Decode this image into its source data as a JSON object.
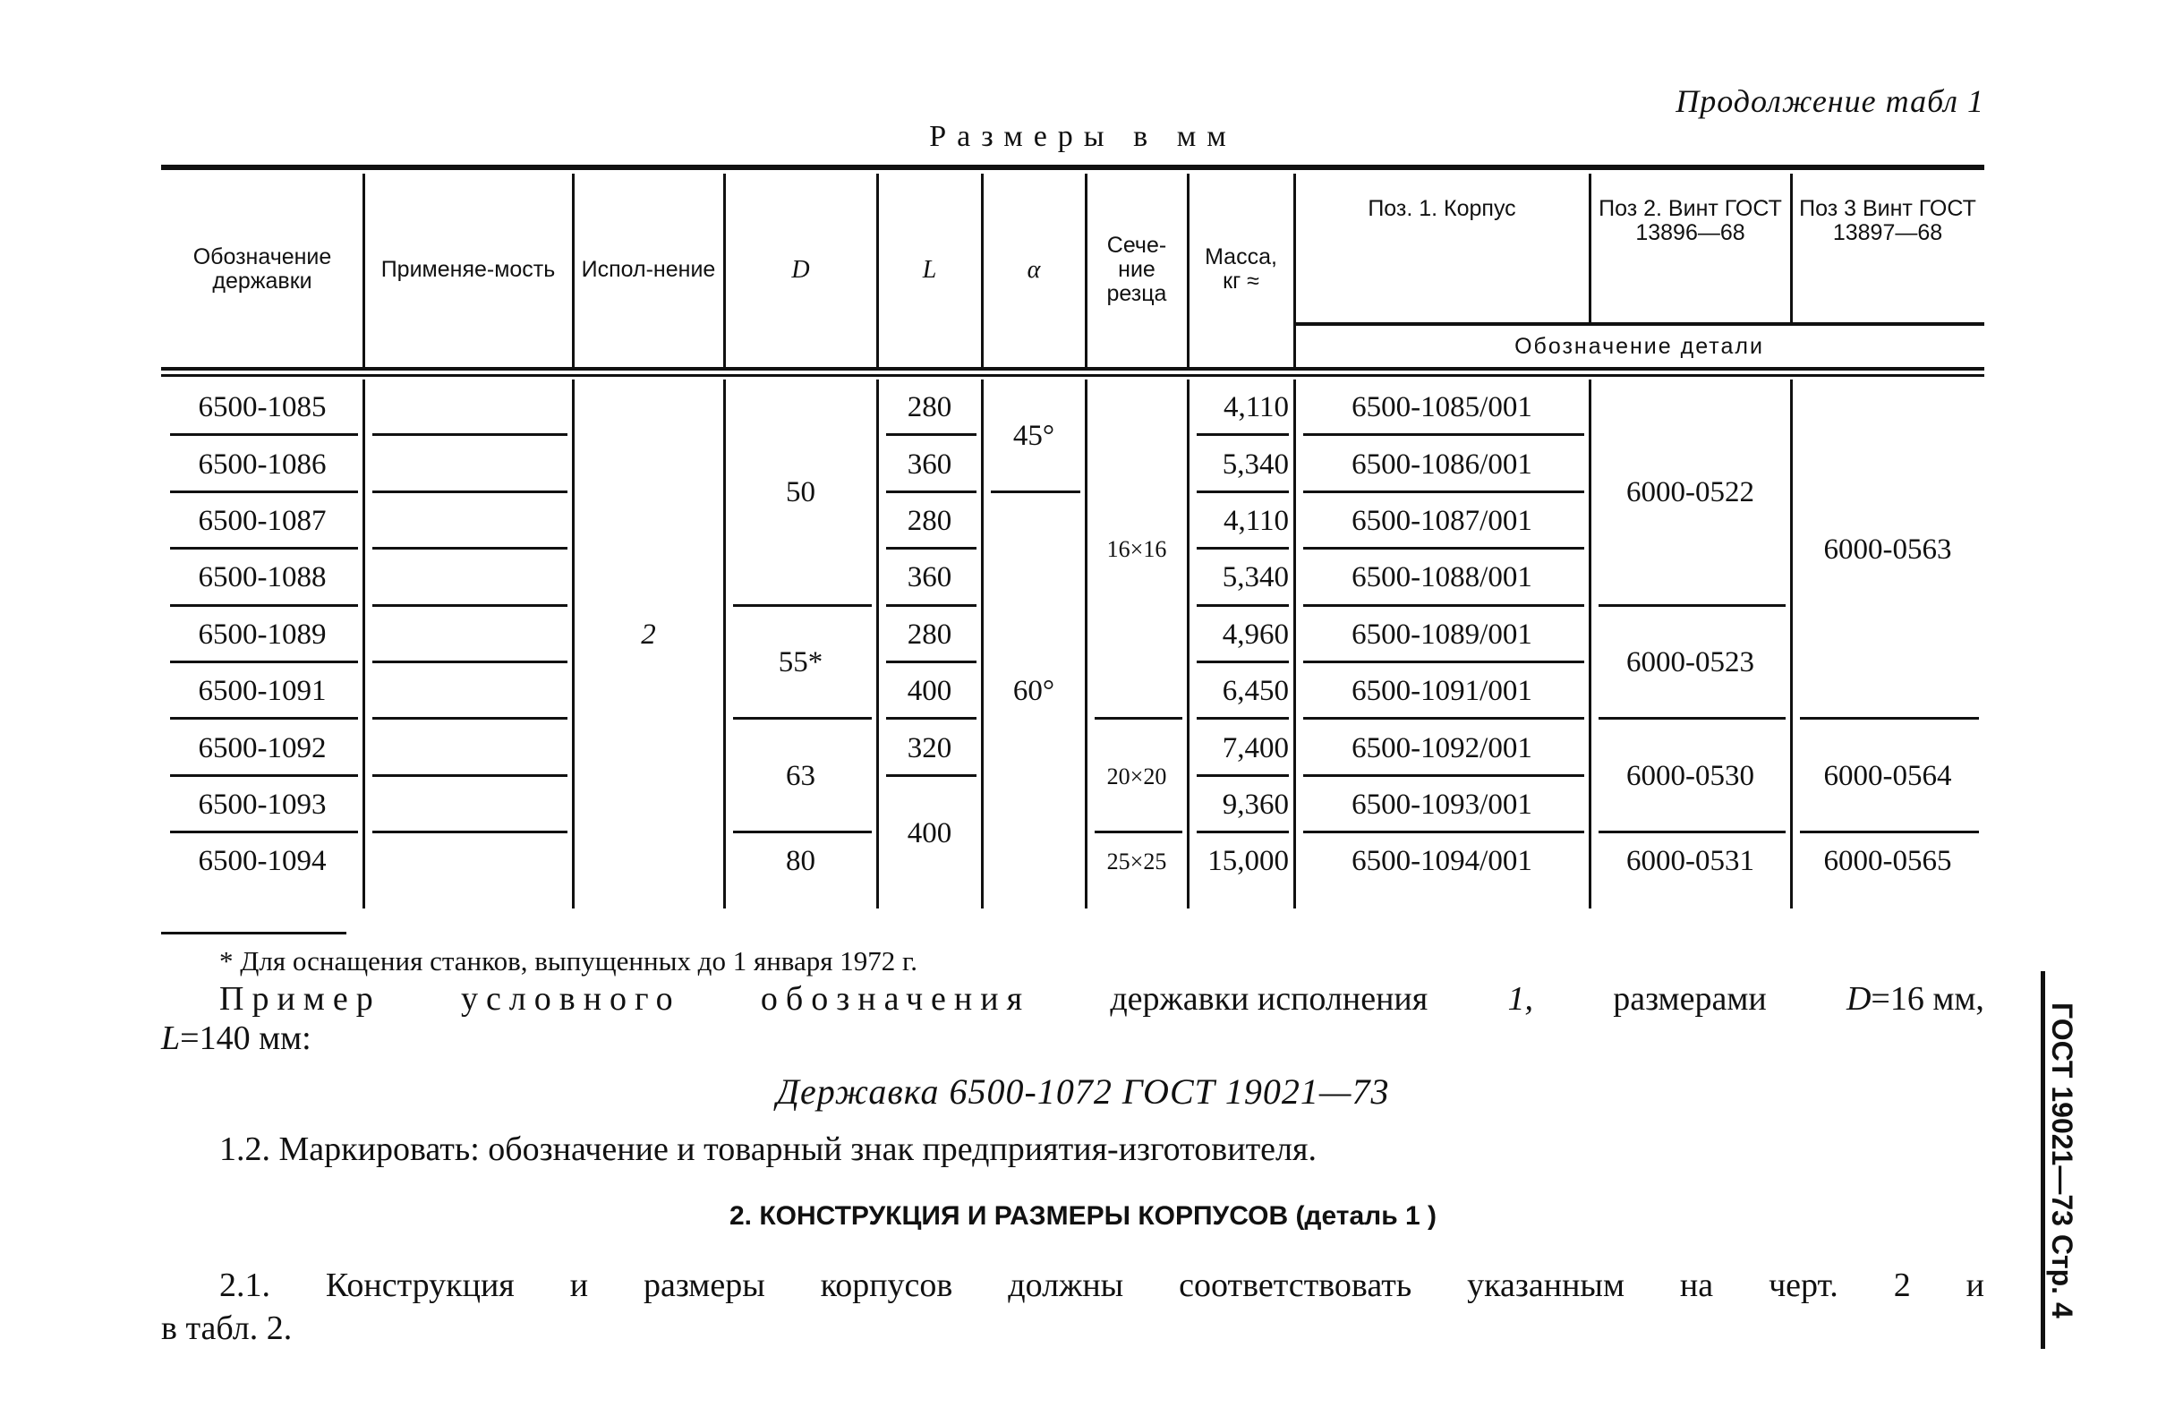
{
  "header": {
    "continuation": "Продолжение табл 1",
    "units": "Размеры в мм"
  },
  "table": {
    "headers": [
      "Обозначение державки",
      "Применяе-мость",
      "Испол-нение",
      "D",
      "L",
      "α",
      "Сече-ние резца",
      "Масса, кг ≈",
      "Поз. 1. Корпус",
      "Поз 2. Винт ГОСТ 13896—68",
      "Поз 3 Винт ГОСТ 13897—68"
    ],
    "subheader": "Обозначение детали",
    "columns": [
      [
        {
          "v": "6500-1085",
          "n": 1
        },
        {
          "v": "6500-1086",
          "n": 1
        },
        {
          "v": "6500-1087",
          "n": 1
        },
        {
          "v": "6500-1088",
          "n": 1
        },
        {
          "v": "6500-1089",
          "n": 1
        },
        {
          "v": "6500-1091",
          "n": 1
        },
        {
          "v": "6500-1092",
          "n": 1
        },
        {
          "v": "6500-1093",
          "n": 1
        },
        {
          "v": "6500-1094",
          "n": 1
        }
      ],
      [
        {
          "v": "",
          "n": 1
        },
        {
          "v": "",
          "n": 1
        },
        {
          "v": "",
          "n": 1
        },
        {
          "v": "",
          "n": 1
        },
        {
          "v": "",
          "n": 1
        },
        {
          "v": "",
          "n": 1
        },
        {
          "v": "",
          "n": 1
        },
        {
          "v": "",
          "n": 1
        },
        {
          "v": "",
          "n": 1
        }
      ],
      [
        {
          "v": "2",
          "n": 9
        }
      ],
      [
        {
          "v": "50",
          "n": 4
        },
        {
          "v": "55*",
          "n": 2
        },
        {
          "v": "63",
          "n": 2
        },
        {
          "v": "80",
          "n": 1
        }
      ],
      [
        {
          "v": "280",
          "n": 1
        },
        {
          "v": "360",
          "n": 1
        },
        {
          "v": "280",
          "n": 1
        },
        {
          "v": "360",
          "n": 1
        },
        {
          "v": "280",
          "n": 1
        },
        {
          "v": "400",
          "n": 1
        },
        {
          "v": "320",
          "n": 1
        },
        {
          "v": "400",
          "n": 2
        }
      ],
      [
        {
          "v": "45°",
          "n": 2
        },
        {
          "v": "60°",
          "n": 7
        }
      ],
      [
        {
          "v": "16×16",
          "n": 6
        },
        {
          "v": "20×20",
          "n": 2
        },
        {
          "v": "25×25",
          "n": 1
        }
      ],
      [
        {
          "v": "4,110",
          "n": 1
        },
        {
          "v": "5,340",
          "n": 1
        },
        {
          "v": "4,110",
          "n": 1
        },
        {
          "v": "5,340",
          "n": 1
        },
        {
          "v": "4,960",
          "n": 1
        },
        {
          "v": "6,450",
          "n": 1
        },
        {
          "v": "7,400",
          "n": 1
        },
        {
          "v": "9,360",
          "n": 1
        },
        {
          "v": "15,000",
          "n": 1
        }
      ],
      [
        {
          "v": "6500-1085/001",
          "n": 1
        },
        {
          "v": "6500-1086/001",
          "n": 1
        },
        {
          "v": "6500-1087/001",
          "n": 1
        },
        {
          "v": "6500-1088/001",
          "n": 1
        },
        {
          "v": "6500-1089/001",
          "n": 1
        },
        {
          "v": "6500-1091/001",
          "n": 1
        },
        {
          "v": "6500-1092/001",
          "n": 1
        },
        {
          "v": "6500-1093/001",
          "n": 1
        },
        {
          "v": "6500-1094/001",
          "n": 1
        }
      ],
      [
        {
          "v": "6000-0522",
          "n": 4
        },
        {
          "v": "6000-0523",
          "n": 2
        },
        {
          "v": "6000-0530",
          "n": 2
        },
        {
          "v": "6000-0531",
          "n": 1
        }
      ],
      [
        {
          "v": "6000-0563",
          "n": 6
        },
        {
          "v": "6000-0564",
          "n": 2
        },
        {
          "v": "6000-0565",
          "n": 1
        }
      ]
    ]
  },
  "footnote": "* Для оснащения станков, выпущенных до 1 января 1972 г.",
  "example": {
    "w1": "Пример",
    "w2": "условного",
    "w3": "обозначения",
    "rest": "державки исполнения",
    "ver": "1,",
    "rest2": "размерами",
    "dim1": "D",
    "dim1v": "=16 мм,",
    "dim2": "L",
    "dim2v": "=140 мм:",
    "designation": "Державка 6500-1072 ГОСТ 19021—73"
  },
  "p12": "1.2. Маркировать: обозначение и товарный знак предприятия-изготовителя.",
  "section2": {
    "title": "2. КОНСТРУКЦИЯ И РАЗМЕРЫ КОРПУСОВ (деталь 1 )",
    "p21_line1": "2.1. Конструкция и размеры корпусов должны соответствовать указанным на черт. 2 и",
    "p21_line2": "в табл. 2."
  },
  "margin": "ГОСТ 19021—73 Стр. 4"
}
